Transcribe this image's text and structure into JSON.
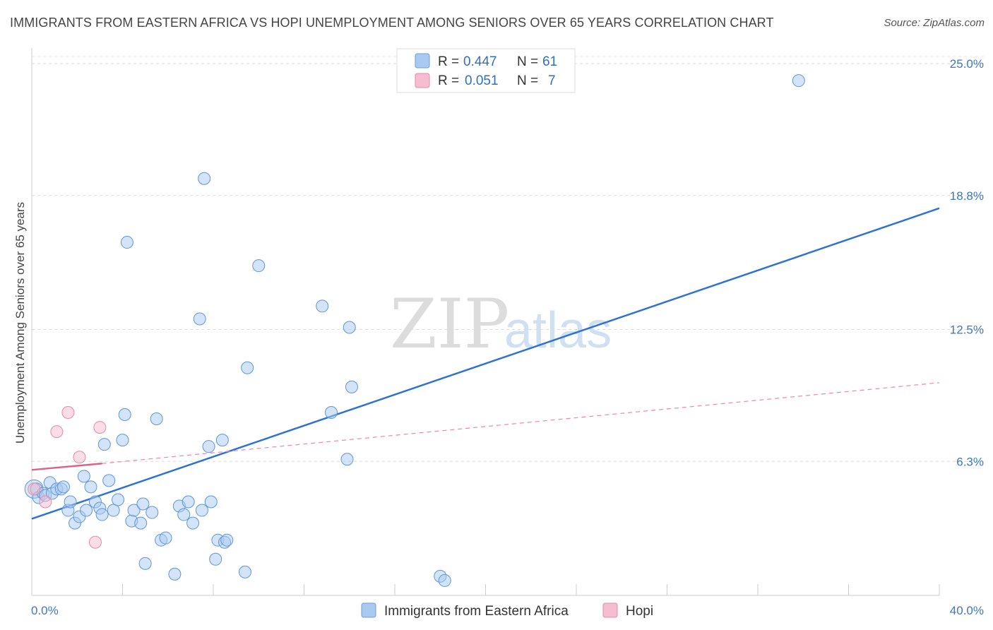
{
  "chart_data": {
    "type": "scatter",
    "title": "IMMIGRANTS FROM EASTERN AFRICA VS HOPI UNEMPLOYMENT AMONG SENIORS OVER 65 YEARS CORRELATION CHART",
    "source": "Source: ZipAtlas.com",
    "ylabel": "Unemployment Among Seniors over 65 years",
    "xlabel": "",
    "xlim": [
      0,
      40
    ],
    "ylim": [
      0,
      25.6
    ],
    "x_tick_labels": [
      "0.0%",
      "40.0%"
    ],
    "y_ticks": [
      {
        "value": 6.3,
        "label": "6.3%"
      },
      {
        "value": 12.5,
        "label": "12.5%"
      },
      {
        "value": 18.8,
        "label": "18.8%"
      },
      {
        "value": 25.0,
        "label": "25.0%"
      }
    ],
    "legend": [
      {
        "name": "Immigrants from Eastern Africa",
        "r_label": "R =",
        "r": "0.447",
        "n_label": "N =",
        "n": "61",
        "color": "#a9c9f1",
        "stroke": "#6a9fdc"
      },
      {
        "name": "Hopi",
        "r_label": "R =",
        "r": "0.051",
        "n_label": "N =",
        "n": "7",
        "color": "#f6bcd0",
        "stroke": "#e58aa8"
      }
    ],
    "series": [
      {
        "name": "Immigrants from Eastern Africa",
        "color": "#a9c9f1",
        "stroke": "#5f96d8",
        "trend": {
          "x": [
            0,
            40
          ],
          "y": [
            3.6,
            18.2
          ],
          "color": "#2e72d2"
        },
        "points": [
          [
            0.2,
            5.0
          ],
          [
            0.3,
            4.6
          ],
          [
            0.5,
            4.8
          ],
          [
            0.6,
            4.7
          ],
          [
            0.8,
            5.3
          ],
          [
            0.9,
            4.8
          ],
          [
            1.1,
            5.0
          ],
          [
            1.3,
            5.0
          ],
          [
            1.4,
            5.1
          ],
          [
            1.6,
            4.0
          ],
          [
            1.7,
            4.4
          ],
          [
            1.9,
            3.4
          ],
          [
            2.1,
            3.7
          ],
          [
            2.3,
            5.6
          ],
          [
            2.4,
            4.0
          ],
          [
            2.6,
            5.1
          ],
          [
            2.8,
            4.4
          ],
          [
            3.0,
            4.1
          ],
          [
            3.1,
            3.8
          ],
          [
            3.2,
            7.1
          ],
          [
            3.4,
            5.4
          ],
          [
            3.6,
            4.0
          ],
          [
            3.8,
            4.5
          ],
          [
            4.0,
            7.3
          ],
          [
            4.1,
            8.5
          ],
          [
            4.2,
            16.6
          ],
          [
            4.4,
            3.5
          ],
          [
            4.5,
            4.0
          ],
          [
            4.8,
            3.4
          ],
          [
            4.9,
            4.3
          ],
          [
            5.0,
            1.5
          ],
          [
            5.3,
            3.9
          ],
          [
            5.5,
            8.3
          ],
          [
            5.7,
            2.6
          ],
          [
            5.9,
            2.7
          ],
          [
            6.3,
            1.0
          ],
          [
            6.5,
            4.2
          ],
          [
            6.7,
            3.8
          ],
          [
            6.9,
            4.4
          ],
          [
            7.1,
            3.4
          ],
          [
            7.4,
            13.0
          ],
          [
            7.5,
            4.0
          ],
          [
            7.6,
            19.6
          ],
          [
            7.8,
            7.0
          ],
          [
            7.9,
            4.4
          ],
          [
            8.1,
            1.7
          ],
          [
            8.2,
            2.6
          ],
          [
            8.4,
            7.3
          ],
          [
            8.5,
            2.5
          ],
          [
            8.6,
            2.6
          ],
          [
            9.4,
            1.1
          ],
          [
            9.5,
            10.7
          ],
          [
            10.0,
            15.5
          ],
          [
            12.8,
            13.6
          ],
          [
            13.2,
            8.6
          ],
          [
            13.9,
            6.4
          ],
          [
            14.0,
            12.6
          ],
          [
            14.1,
            9.8
          ],
          [
            18.0,
            0.9
          ],
          [
            18.2,
            0.7
          ],
          [
            33.8,
            24.2
          ]
        ]
      },
      {
        "name": "Hopi",
        "color": "#f6bcd0",
        "stroke": "#e58aa8",
        "trend_solid": {
          "x": [
            0,
            3.1
          ],
          "y": [
            5.9,
            6.2
          ],
          "color": "#e0608a"
        },
        "trend_dashed": {
          "x": [
            3.1,
            40
          ],
          "y": [
            6.2,
            10.0
          ],
          "color": "#e58aa8"
        },
        "points": [
          [
            0.1,
            5.0
          ],
          [
            0.6,
            4.4
          ],
          [
            1.1,
            7.7
          ],
          [
            1.6,
            8.6
          ],
          [
            2.1,
            6.5
          ],
          [
            2.8,
            2.5
          ],
          [
            3.0,
            7.9
          ]
        ]
      }
    ],
    "watermark": {
      "zip": "ZIP",
      "atlas": "atlas"
    }
  }
}
